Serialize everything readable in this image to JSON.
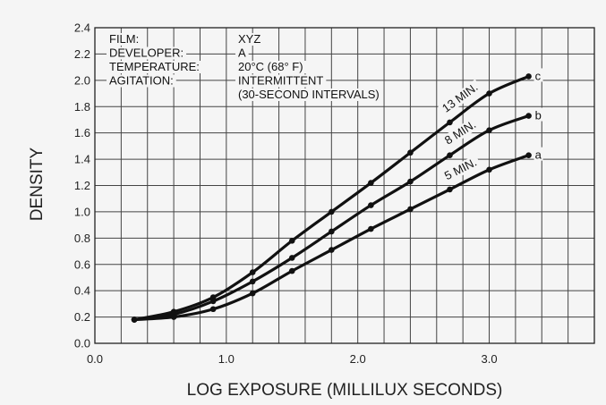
{
  "chart_data": {
    "type": "line",
    "xlabel": "LOG EXPOSURE (MILLILUX SECONDS)",
    "ylabel": "DENSITY",
    "xlim": [
      0.0,
      3.8
    ],
    "ylim": [
      0.0,
      2.4
    ],
    "x_ticks": [
      "0.0",
      "1.0",
      "2.0",
      "3.0"
    ],
    "y_ticks": [
      "0.0",
      "0.2",
      "0.4",
      "0.6",
      "0.8",
      "1.0",
      "1.2",
      "1.4",
      "1.6",
      "1.8",
      "2.0",
      "2.2",
      "2.4"
    ],
    "grid": true,
    "info_box": [
      {
        "label": "FILM:",
        "value": "XYZ"
      },
      {
        "label": "DEVELOPER:",
        "value": "A"
      },
      {
        "label": "TEMPERATURE:",
        "value": "20°C  (68° F)"
      },
      {
        "label": "AGITATION:",
        "value": "INTERMITTENT"
      },
      {
        "label": "",
        "value": "(30-SECOND INTERVALS)"
      }
    ],
    "series": [
      {
        "name": "13 MIN.",
        "end_label": "c",
        "x": [
          0.3,
          0.6,
          0.9,
          1.2,
          1.5,
          1.8,
          2.1,
          2.4,
          2.7,
          3.0,
          3.3
        ],
        "y": [
          0.18,
          0.24,
          0.35,
          0.54,
          0.78,
          1.0,
          1.22,
          1.45,
          1.68,
          1.9,
          2.03
        ]
      },
      {
        "name": "8 MIN.",
        "end_label": "b",
        "x": [
          0.3,
          0.6,
          0.9,
          1.2,
          1.5,
          1.8,
          2.1,
          2.4,
          2.7,
          3.0,
          3.3
        ],
        "y": [
          0.18,
          0.22,
          0.32,
          0.47,
          0.65,
          0.85,
          1.05,
          1.23,
          1.43,
          1.62,
          1.73
        ]
      },
      {
        "name": "5 MIN.",
        "end_label": "a",
        "x": [
          0.3,
          0.6,
          0.9,
          1.2,
          1.5,
          1.8,
          2.1,
          2.4,
          2.7,
          3.0,
          3.3
        ],
        "y": [
          0.18,
          0.2,
          0.26,
          0.38,
          0.55,
          0.71,
          0.87,
          1.02,
          1.17,
          1.32,
          1.43
        ]
      }
    ],
    "colors": {
      "line": "#111111",
      "grid": "#444444",
      "background": "#f5f5f5"
    }
  }
}
